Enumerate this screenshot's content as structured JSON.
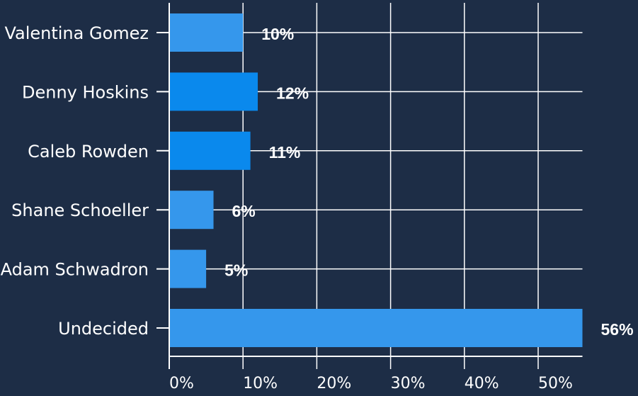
{
  "chart_data": {
    "type": "bar",
    "orientation": "horizontal",
    "categories": [
      "Valentina Gomez",
      "Denny Hoskins",
      "Caleb Rowden",
      "Shane Schoeller",
      "Adam Schwadron",
      "Undecided"
    ],
    "values": [
      10,
      12,
      11,
      6,
      5,
      56
    ],
    "value_labels": [
      "10%",
      "12%",
      "11%",
      "6%",
      "5%",
      "56%"
    ],
    "xticks": [
      0,
      10,
      20,
      30,
      40,
      50
    ],
    "xtick_labels": [
      "0%",
      "10%",
      "20%",
      "30%",
      "40%",
      "50%"
    ],
    "xlim": [
      0,
      56
    ],
    "grid": true,
    "title": "",
    "xlabel": "",
    "ylabel": "",
    "colors": [
      "#3597ec",
      "#0a89ed",
      "#0a89ed",
      "#3597ec",
      "#3597ec",
      "#3597ec"
    ],
    "background_color": "#1d2d46",
    "grid_color": "#ffffff"
  }
}
